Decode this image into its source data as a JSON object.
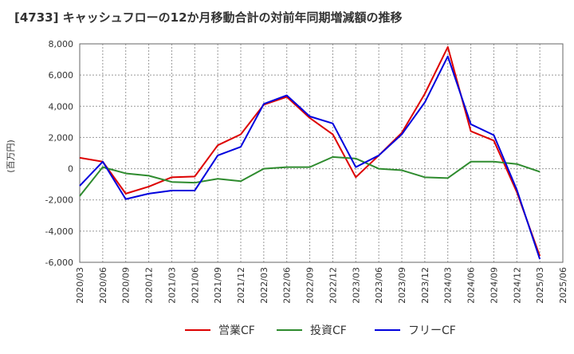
{
  "chart_data": {
    "type": "line",
    "title": "[4733]  キャッシュフローの12か月移動合計の対前年同期増減額の推移",
    "ylabel": "(百万円)",
    "xlabel": "",
    "ylim": [
      -6000,
      8000
    ],
    "yticks": [
      -6000,
      -4000,
      -2000,
      0,
      2000,
      4000,
      6000,
      8000
    ],
    "ytick_labels": [
      "-6,000",
      "-4,000",
      "-2,000",
      "0",
      "2,000",
      "4,000",
      "6,000",
      "8,000"
    ],
    "x_labels": [
      "2020/03",
      "2020/06",
      "2020/09",
      "2020/12",
      "2021/03",
      "2021/06",
      "2021/09",
      "2021/12",
      "2022/03",
      "2022/06",
      "2022/09",
      "2022/12",
      "2023/03",
      "2023/06",
      "2023/09",
      "2023/12",
      "2024/03",
      "2024/06",
      "2024/09",
      "2024/12",
      "2025/03",
      "2025/06"
    ],
    "grid": true,
    "legend_position": "bottom",
    "series": [
      {
        "name": "営業CF",
        "color": "#dd0000",
        "values": [
          700,
          450,
          -1600,
          -1150,
          -550,
          -500,
          1500,
          2200,
          4100,
          4600,
          3250,
          2200,
          -550,
          850,
          2300,
          4800,
          7800,
          2400,
          1800,
          -1500,
          -5600,
          null
        ]
      },
      {
        "name": "投資CF",
        "color": "#2e8b2e",
        "values": [
          -1750,
          100,
          -300,
          -450,
          -850,
          -900,
          -650,
          -800,
          0,
          100,
          100,
          750,
          650,
          0,
          -100,
          -550,
          -600,
          450,
          450,
          300,
          -200,
          null
        ]
      },
      {
        "name": "フリーCF",
        "color": "#0000dd",
        "values": [
          -1100,
          450,
          -1950,
          -1600,
          -1400,
          -1400,
          850,
          1400,
          4150,
          4700,
          3350,
          2900,
          100,
          850,
          2200,
          4250,
          7200,
          2850,
          2150,
          -1350,
          -5800,
          null
        ]
      }
    ]
  }
}
